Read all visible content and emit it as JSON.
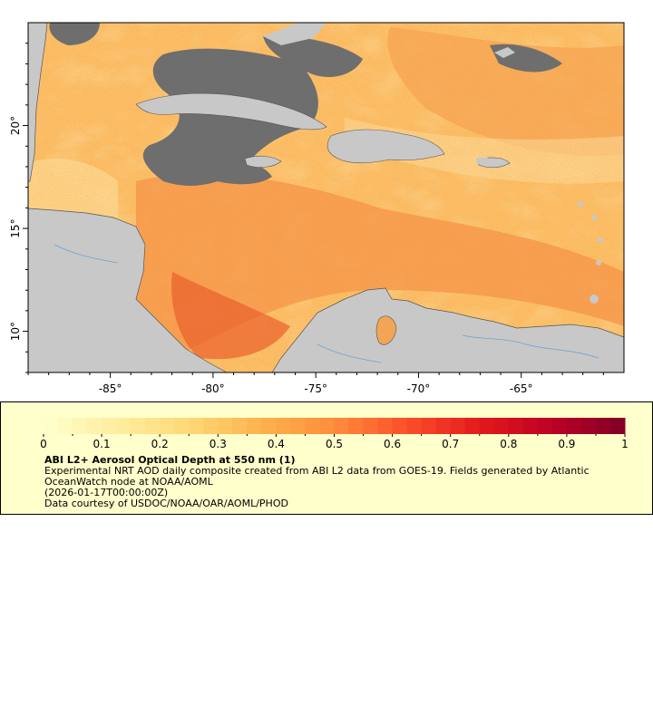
{
  "map": {
    "lon_range": [
      -89,
      -60
    ],
    "lat_range": [
      8,
      25
    ],
    "lon_ticks": [
      -85,
      -80,
      -75,
      -70,
      -65
    ],
    "lon_tick_labels": [
      "-85°",
      "-80°",
      "-75°",
      "-70°",
      "-65°"
    ],
    "lat_ticks": [
      10,
      15,
      20
    ],
    "lat_tick_labels": [
      "10°",
      "15°",
      "20°"
    ],
    "colors": {
      "land": "#c8c8c8",
      "cloud": "#6e6e6e",
      "river": "#6fa0d0",
      "border": "#555555"
    }
  },
  "colorbar": {
    "min": 0,
    "max": 1,
    "tick_values": [
      0,
      0.1,
      0.2,
      0.3,
      0.4,
      0.5,
      0.6,
      0.7,
      0.8,
      0.9,
      1
    ],
    "tick_labels": [
      "0",
      "0.1",
      "0.2",
      "0.3",
      "0.4",
      "0.5",
      "0.6",
      "0.7",
      "0.8",
      "0.9",
      "1"
    ],
    "colors": [
      "#ffffcc",
      "#ffeda0",
      "#fed976",
      "#feb24c",
      "#fd8d3c",
      "#fc4e2a",
      "#e31a1c",
      "#bd0026",
      "#800026"
    ]
  },
  "legend": {
    "title": "ABI L2+ Aerosol Optical Depth at 550 nm (1)",
    "line1": "Experimental NRT AOD daily composite created from ABI L2 data from GOES-19. Fields generated by Atlantic",
    "line2": "OceanWatch node at NOAA/AOML",
    "line3": "(2026-01-17T00:00:00Z)",
    "line4": "Data courtesy of USDOC/NOAA/OAR/AOML/PHOD"
  }
}
